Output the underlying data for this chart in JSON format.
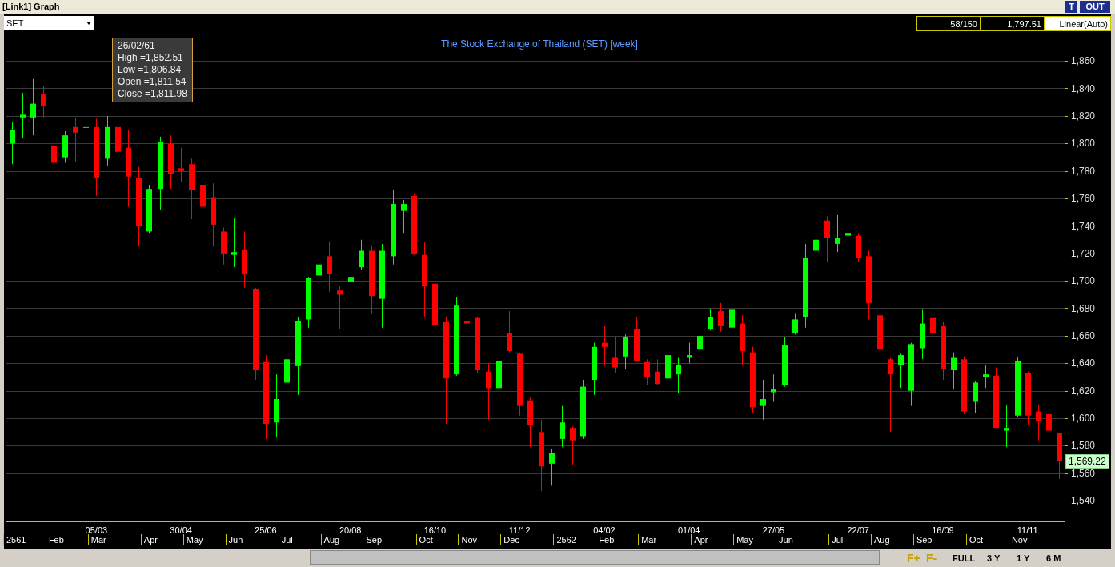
{
  "chart_data": {
    "type": "candlestick",
    "title": "The Stock Exchange of Thailand (SET) [week]",
    "categories": [
      null,
      null,
      null,
      null,
      null,
      null,
      null,
      null,
      "05/03",
      null,
      null,
      null,
      null,
      null,
      null,
      null,
      "30/04",
      null,
      null,
      null,
      null,
      null,
      null,
      null,
      "25/06",
      null,
      null,
      null,
      null,
      null,
      null,
      null,
      "20/08",
      null,
      null,
      null,
      null,
      null,
      null,
      null,
      "16/10",
      null,
      null,
      null,
      null,
      null,
      null,
      null,
      "11/12",
      null,
      null,
      null,
      null,
      null,
      null,
      null,
      "04/02",
      null,
      null,
      null,
      null,
      null,
      null,
      null,
      "01/04",
      null,
      null,
      null,
      null,
      null,
      null,
      null,
      "27/05",
      null,
      null,
      null,
      null,
      null,
      null,
      null,
      "22/07",
      null,
      null,
      null,
      null,
      null,
      null,
      null,
      "16/09",
      null,
      null,
      null,
      null,
      null,
      null,
      null,
      "11/11",
      null,
      null,
      null
    ],
    "ohlc": [
      [
        1800,
        1816,
        1785,
        1810
      ],
      [
        1819,
        1837,
        1804,
        1821
      ],
      [
        1819,
        1847,
        1806,
        1829
      ],
      [
        1836,
        1842,
        1819,
        1827
      ],
      [
        1798,
        1813,
        1758,
        1786
      ],
      [
        1790,
        1809,
        1786,
        1806
      ],
      [
        1812,
        1819,
        1787,
        1808
      ],
      [
        1811.54,
        1852.51,
        1806.84,
        1811.98
      ],
      [
        1812,
        1818,
        1762,
        1775
      ],
      [
        1789,
        1820,
        1784,
        1812
      ],
      [
        1812,
        1813,
        1780,
        1794
      ],
      [
        1797,
        1810,
        1754,
        1776
      ],
      [
        1775,
        1783,
        1725,
        1740
      ],
      [
        1736,
        1770,
        1735,
        1767
      ],
      [
        1767,
        1805,
        1752,
        1801
      ],
      [
        1800,
        1806,
        1767,
        1778
      ],
      [
        1782,
        1797,
        1772,
        1780
      ],
      [
        1785,
        1789,
        1745,
        1766
      ],
      [
        1770,
        1775,
        1745,
        1754
      ],
      [
        1761,
        1771,
        1725,
        1741
      ],
      [
        1736,
        1739,
        1712,
        1720
      ],
      [
        1719,
        1746,
        1710,
        1721
      ],
      [
        1723,
        1736,
        1695,
        1705
      ],
      [
        1694,
        1695,
        1628,
        1635
      ],
      [
        1641,
        1646,
        1585,
        1596
      ],
      [
        1597,
        1632,
        1586,
        1614
      ],
      [
        1626,
        1650,
        1617,
        1643
      ],
      [
        1638,
        1674,
        1617,
        1671
      ],
      [
        1672,
        1703,
        1666,
        1702
      ],
      [
        1704,
        1722,
        1696,
        1712
      ],
      [
        1718,
        1729,
        1692,
        1705
      ],
      [
        1693,
        1696,
        1665,
        1690
      ],
      [
        1699,
        1710,
        1689,
        1703
      ],
      [
        1710,
        1730,
        1708,
        1722
      ],
      [
        1722,
        1726,
        1676,
        1689
      ],
      [
        1687,
        1727,
        1666,
        1722
      ],
      [
        1718,
        1766,
        1712,
        1756
      ],
      [
        1751,
        1759,
        1735,
        1756
      ],
      [
        1762,
        1764,
        1719,
        1720
      ],
      [
        1719,
        1728,
        1674,
        1696
      ],
      [
        1698,
        1710,
        1664,
        1668
      ],
      [
        1670,
        1674,
        1596,
        1629
      ],
      [
        1632,
        1688,
        1631,
        1682
      ],
      [
        1671,
        1689,
        1656,
        1669
      ],
      [
        1673,
        1674,
        1633,
        1635
      ],
      [
        1634,
        1640,
        1599,
        1622
      ],
      [
        1622,
        1650,
        1617,
        1642
      ],
      [
        1662,
        1678,
        1648,
        1649
      ],
      [
        1647,
        1648,
        1602,
        1609
      ],
      [
        1613,
        1615,
        1579,
        1595
      ],
      [
        1590,
        1599,
        1547,
        1565
      ],
      [
        1567,
        1578,
        1551,
        1575
      ],
      [
        1585,
        1609,
        1579,
        1597
      ],
      [
        1593,
        1594,
        1566,
        1584
      ],
      [
        1587,
        1628,
        1585,
        1623
      ],
      [
        1628,
        1655,
        1617,
        1652
      ],
      [
        1655,
        1667,
        1638,
        1652
      ],
      [
        1644,
        1659,
        1633,
        1637
      ],
      [
        1645,
        1661,
        1636,
        1659
      ],
      [
        1665,
        1674,
        1641,
        1642
      ],
      [
        1641,
        1643,
        1624,
        1630
      ],
      [
        1634,
        1643,
        1624,
        1625
      ],
      [
        1629,
        1647,
        1613,
        1646
      ],
      [
        1632,
        1644,
        1618,
        1639
      ],
      [
        1644,
        1655,
        1640,
        1646
      ],
      [
        1650,
        1665,
        1648,
        1660
      ],
      [
        1665,
        1680,
        1664,
        1674
      ],
      [
        1678,
        1684,
        1663,
        1667
      ],
      [
        1666,
        1682,
        1663,
        1679
      ],
      [
        1669,
        1675,
        1639,
        1649
      ],
      [
        1648,
        1652,
        1604,
        1608
      ],
      [
        1609,
        1628,
        1599,
        1614
      ],
      [
        1619,
        1632,
        1612,
        1621
      ],
      [
        1624,
        1659,
        1623,
        1653
      ],
      [
        1662,
        1676,
        1661,
        1672
      ],
      [
        1674,
        1727,
        1666,
        1717
      ],
      [
        1722,
        1735,
        1707,
        1730
      ],
      [
        1744,
        1747,
        1714,
        1731
      ],
      [
        1727,
        1748,
        1721,
        1731
      ],
      [
        1733,
        1738,
        1713,
        1735
      ],
      [
        1733,
        1735,
        1714,
        1717
      ],
      [
        1718,
        1722,
        1672,
        1684
      ],
      [
        1675,
        1681,
        1648,
        1650
      ],
      [
        1643,
        1644,
        1590,
        1632
      ],
      [
        1639,
        1647,
        1622,
        1646
      ],
      [
        1620,
        1655,
        1609,
        1654
      ],
      [
        1651,
        1679,
        1643,
        1669
      ],
      [
        1673,
        1678,
        1656,
        1662
      ],
      [
        1667,
        1670,
        1628,
        1636
      ],
      [
        1635,
        1648,
        1621,
        1644
      ],
      [
        1643,
        1645,
        1603,
        1605
      ],
      [
        1612,
        1627,
        1604,
        1626
      ],
      [
        1630,
        1639,
        1622,
        1632
      ],
      [
        1631,
        1637,
        1593,
        1593
      ],
      [
        1591,
        1610,
        1579,
        1593
      ],
      [
        1602,
        1645,
        1601,
        1642
      ],
      [
        1633,
        1634,
        1595,
        1602
      ],
      [
        1605,
        1610,
        1584,
        1598
      ],
      [
        1603,
        1620,
        1580,
        1591
      ],
      [
        1589,
        1589,
        1556,
        1569.22
      ]
    ],
    "colors": [
      "#00ff00",
      "#00ff00",
      "#00ff00",
      "#ff0000",
      "#ff0000",
      "#00ff00",
      "#ff0000",
      "#00ff00",
      "#ff0000",
      "#00ff00",
      "#ff0000",
      "#ff0000",
      "#ff0000",
      "#00ff00",
      "#00ff00",
      "#ff0000",
      "#ff0000",
      "#ff0000",
      "#ff0000",
      "#ff0000",
      "#ff0000",
      "#00ff00",
      "#ff0000",
      "#ff0000",
      "#ff0000",
      "#00ff00",
      "#00ff00",
      "#00ff00",
      "#00ff00",
      "#00ff00",
      "#ff0000",
      "#ff0000",
      "#00ff00",
      "#00ff00",
      "#ff0000",
      "#00ff00",
      "#00ff00",
      "#00ff00",
      "#ff0000",
      "#ff0000",
      "#ff0000",
      "#ff0000",
      "#00ff00",
      "#ff0000",
      "#ff0000",
      "#ff0000",
      "#00ff00",
      "#ff0000",
      "#ff0000",
      "#ff0000",
      "#ff0000",
      "#00ff00",
      "#00ff00",
      "#ff0000",
      "#00ff00",
      "#00ff00",
      "#ff0000",
      "#ff0000",
      "#00ff00",
      "#ff0000",
      "#ff0000",
      "#ff0000",
      "#00ff00",
      "#00ff00",
      "#00ff00",
      "#00ff00",
      "#00ff00",
      "#ff0000",
      "#00ff00",
      "#ff0000",
      "#ff0000",
      "#00ff00",
      "#00ff00",
      "#00ff00",
      "#00ff00",
      "#00ff00",
      "#00ff00",
      "#ff0000",
      "#00ff00",
      "#00ff00",
      "#ff0000",
      "#ff0000",
      "#ff0000",
      "#ff0000",
      "#00ff00",
      "#00ff00",
      "#00ff00",
      "#ff0000",
      "#ff0000",
      "#00ff00",
      "#ff0000",
      "#00ff00",
      "#00ff00",
      "#ff0000",
      "#00ff00",
      "#00ff00",
      "#ff0000",
      "#ff0000",
      "#ff0000",
      "#ff0000"
    ],
    "ylim": [
      1525,
      1880
    ],
    "yticks": [
      {
        "value": 1540,
        "label": "1,540"
      },
      {
        "value": 1560,
        "label": "1,560"
      },
      {
        "value": 1580,
        "label": "1,580"
      },
      {
        "value": 1600,
        "label": "1,600"
      },
      {
        "value": 1620,
        "label": "1,620"
      },
      {
        "value": 1640,
        "label": "1,640"
      },
      {
        "value": 1660,
        "label": "1,660"
      },
      {
        "value": 1680,
        "label": "1,680"
      },
      {
        "value": 1700,
        "label": "1,700"
      },
      {
        "value": 1720,
        "label": "1,720"
      },
      {
        "value": 1740,
        "label": "1,740"
      },
      {
        "value": 1760,
        "label": "1,760"
      },
      {
        "value": 1780,
        "label": "1,780"
      },
      {
        "value": 1800,
        "label": "1,800"
      },
      {
        "value": 1820,
        "label": "1,820"
      },
      {
        "value": 1840,
        "label": "1,840"
      },
      {
        "value": 1860,
        "label": "1,860"
      }
    ],
    "grid": "y",
    "annotations": [
      "[Link1] Graph",
      "SET",
      "58/150",
      "1,797.51",
      "Linear(Auto)",
      "T",
      "OUT",
      "26/02/61",
      "High =1,852.51",
      "Low =1,806.84",
      "Open =1,811.54",
      "Close =1,811.98",
      "1,569.22",
      "2561",
      "Feb",
      "Mar",
      "Apr",
      "May",
      "Jun",
      "Jul",
      "Aug",
      "Sep",
      "Oct",
      "Nov",
      "Dec",
      "2562",
      "Feb",
      "Mar",
      "Apr",
      "May",
      "Jun",
      "Jul",
      "Aug",
      "Sep",
      "Oct",
      "Nov",
      "F+",
      "F-",
      "FULL",
      "3 Y",
      "1 Y",
      "6 M"
    ]
  }
}
